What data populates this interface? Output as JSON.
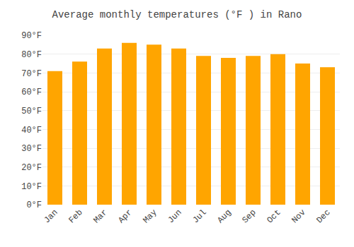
{
  "chart_data": {
    "type": "bar",
    "title": "Average monthly temperatures (°F ) in Rano",
    "categories": [
      "Jan",
      "Feb",
      "Mar",
      "Apr",
      "May",
      "Jun",
      "Jul",
      "Aug",
      "Sep",
      "Oct",
      "Nov",
      "Dec"
    ],
    "values": [
      71,
      76,
      83,
      86,
      85,
      83,
      79,
      78,
      79,
      80,
      75,
      73
    ],
    "color": "#FFA500",
    "ylim": [
      0,
      90
    ],
    "yticks": [
      {
        "value": 0,
        "label": "0°F"
      },
      {
        "value": 10,
        "label": "10°F"
      },
      {
        "value": 20,
        "label": "20°F"
      },
      {
        "value": 30,
        "label": "30°F"
      },
      {
        "value": 40,
        "label": "40°F"
      },
      {
        "value": 50,
        "label": "50°F"
      },
      {
        "value": 60,
        "label": "60°F"
      },
      {
        "value": 70,
        "label": "70°F"
      },
      {
        "value": 80,
        "label": "80°F"
      },
      {
        "value": 90,
        "label": "90°F"
      }
    ],
    "grid": true
  }
}
